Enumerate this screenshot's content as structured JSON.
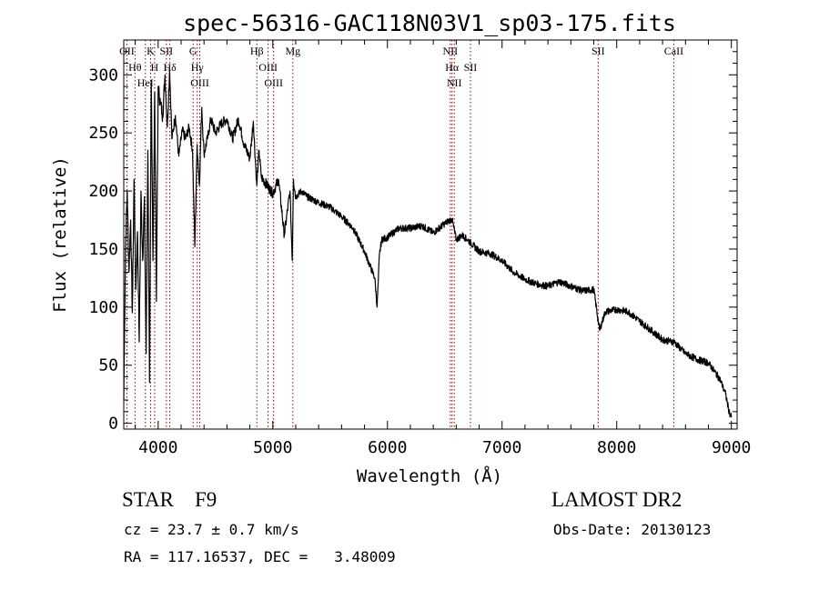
{
  "chart_data": {
    "type": "line",
    "title": "spec-56316-GAC118N03V1_sp03-175.fits",
    "xlabel": "Wavelength (Å)",
    "ylabel": "Flux (relative)",
    "xlim": [
      3700,
      9050
    ],
    "ylim": [
      -5,
      330
    ],
    "xticks": [
      4000,
      5000,
      6000,
      7000,
      8000,
      9000
    ],
    "yticks": [
      0,
      50,
      100,
      150,
      200,
      250,
      300
    ],
    "grid": false,
    "line_color": "#000000",
    "marker_color": "#8b0000",
    "series": [
      {
        "x": [
          3700,
          3715,
          3730,
          3745,
          3760,
          3775,
          3790,
          3805,
          3820,
          3835,
          3850,
          3865,
          3880,
          3895,
          3910,
          3925,
          3940,
          3955,
          3970,
          3985,
          4000,
          4020,
          4040,
          4060,
          4080,
          4100,
          4120,
          4150,
          4180,
          4210,
          4240,
          4270,
          4300,
          4320,
          4340,
          4360,
          4380,
          4400,
          4430,
          4460,
          4500,
          4550,
          4600,
          4650,
          4700,
          4750,
          4800,
          4830,
          4860,
          4880,
          4900,
          4950,
          5000,
          5050,
          5100,
          5150,
          5170,
          5180,
          5200,
          5250,
          5300,
          5400,
          5500,
          5600,
          5700,
          5800,
          5850,
          5870,
          5890,
          5910,
          5930,
          5950,
          6000,
          6100,
          6200,
          6300,
          6400,
          6500,
          6563,
          6600,
          6650,
          6700,
          6800,
          6900,
          7000,
          7100,
          7200,
          7300,
          7400,
          7500,
          7600,
          7700,
          7800,
          7850,
          7900,
          8000,
          8100,
          8200,
          8300,
          8400,
          8500,
          8600,
          8700,
          8800,
          8850,
          8900,
          8950,
          8980,
          9000
        ],
        "y": [
          20,
          150,
          200,
          130,
          175,
          95,
          210,
          115,
          165,
          70,
          200,
          140,
          195,
          60,
          235,
          35,
          295,
          140,
          285,
          105,
          290,
          275,
          265,
          300,
          255,
          305,
          245,
          265,
          230,
          252,
          245,
          255,
          235,
          152,
          240,
          205,
          272,
          232,
          245,
          262,
          250,
          258,
          262,
          245,
          262,
          240,
          228,
          260,
          205,
          235,
          212,
          205,
          198,
          210,
          162,
          200,
          140,
          210,
          195,
          200,
          195,
          190,
          186,
          178,
          168,
          148,
          135,
          130,
          125,
          100,
          145,
          158,
          160,
          168,
          168,
          170,
          164,
          172,
          176,
          158,
          162,
          158,
          148,
          146,
          140,
          130,
          124,
          120,
          118,
          122,
          118,
          114,
          115,
          80,
          96,
          98,
          96,
          88,
          80,
          72,
          70,
          60,
          55,
          52,
          45,
          38,
          25,
          10,
          5
        ]
      }
    ],
    "lines": [
      {
        "x": 3727,
        "label": "OII"
      },
      {
        "x": 3798,
        "label": "Hθ"
      },
      {
        "x": 3889,
        "label": "HeI"
      },
      {
        "x": 3934,
        "label": "K"
      },
      {
        "x": 3969,
        "label": "H"
      },
      {
        "x": 4072,
        "label": "SII"
      },
      {
        "x": 4102,
        "label": "Hδ"
      },
      {
        "x": 4305,
        "label": "G"
      },
      {
        "x": 4341,
        "label": "Hγ"
      },
      {
        "x": 4363,
        "label": "OIII"
      },
      {
        "x": 4861,
        "label": "Hβ"
      },
      {
        "x": 4959,
        "label": "OIII"
      },
      {
        "x": 5007,
        "label": "OIII"
      },
      {
        "x": 5175,
        "label": "Mg"
      },
      {
        "x": 6548,
        "label": "NII"
      },
      {
        "x": 6563,
        "label": "Hα"
      },
      {
        "x": 6583,
        "label": "NII"
      },
      {
        "x": 6724,
        "label": "SII"
      },
      {
        "x": 7838,
        "label": "SII"
      },
      {
        "x": 8498,
        "label": "CaII"
      }
    ]
  },
  "info": {
    "class_line": "STAR    F9",
    "cz_line": "cz = 23.7 ± 0.7 km/s",
    "radec_line": "RA = 117.16537, DEC =   3.48009",
    "survey": "LAMOST DR2",
    "obs_date": "Obs-Date: 20130123"
  }
}
